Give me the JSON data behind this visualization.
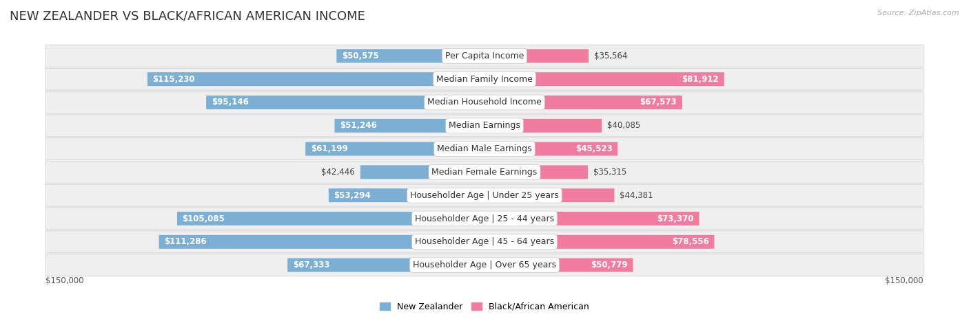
{
  "title": "NEW ZEALANDER VS BLACK/AFRICAN AMERICAN INCOME",
  "source": "Source: ZipAtlas.com",
  "categories": [
    "Per Capita Income",
    "Median Family Income",
    "Median Household Income",
    "Median Earnings",
    "Median Male Earnings",
    "Median Female Earnings",
    "Householder Age | Under 25 years",
    "Householder Age | 25 - 44 years",
    "Householder Age | 45 - 64 years",
    "Householder Age | Over 65 years"
  ],
  "new_zealander": [
    50575,
    115230,
    95146,
    51246,
    61199,
    42446,
    53294,
    105085,
    111286,
    67333
  ],
  "black_african": [
    35564,
    81912,
    67573,
    40085,
    45523,
    35315,
    44381,
    73370,
    78556,
    50779
  ],
  "nz_color": "#7bafd4",
  "ba_color": "#f07ca0",
  "nz_label": "New Zealander",
  "ba_label": "Black/African American",
  "max_val": 150000,
  "row_bg_color": "#efefef",
  "row_edge_color": "#d8d8d8",
  "bg_color": "#ffffff",
  "title_fontsize": 13,
  "label_fontsize": 9,
  "value_fontsize": 8.5,
  "axis_label": "$150,000"
}
